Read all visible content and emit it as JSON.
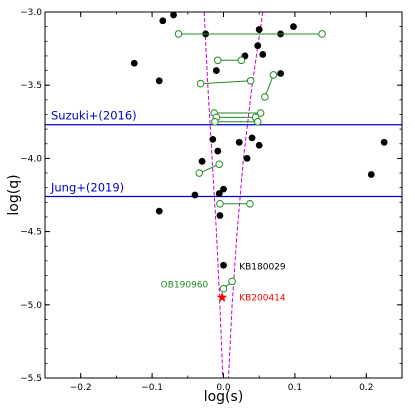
{
  "chart_data": {
    "type": "scatter",
    "xlabel": "log(s)",
    "ylabel": "log(q)",
    "xlim": [
      -0.25,
      0.25
    ],
    "ylim": [
      -5.5,
      -3.0
    ],
    "xticks": [
      -0.2,
      -0.1,
      0.0,
      0.1,
      0.2
    ],
    "xtick_labels": [
      "−0.2",
      "−0.1",
      "0.0",
      "0.1",
      "0.2"
    ],
    "yticks": [
      -5.5,
      -5.0,
      -4.5,
      -4.0,
      -3.5,
      -3.0
    ],
    "ytick_labels": [
      "−5.5",
      "−5.0",
      "−4.5",
      "−4.0",
      "−3.5",
      "−3.0"
    ],
    "series": [
      {
        "marker": "filled-circle",
        "color": "#000000",
        "points": [
          {
            "x": -0.07,
            "y": -3.02
          },
          {
            "x": -0.085,
            "y": -3.06
          },
          {
            "x": -0.125,
            "y": -3.35
          },
          {
            "x": -0.09,
            "y": -3.47
          },
          {
            "x": -0.025,
            "y": -3.15
          },
          {
            "x": -0.01,
            "y": -3.4
          },
          {
            "x": 0.03,
            "y": -3.3
          },
          {
            "x": 0.05,
            "y": -3.12
          },
          {
            "x": 0.048,
            "y": -3.23
          },
          {
            "x": 0.055,
            "y": -3.29
          },
          {
            "x": 0.08,
            "y": -3.15
          },
          {
            "x": 0.098,
            "y": -3.1
          },
          {
            "x": 0.08,
            "y": -3.42
          },
          {
            "x": -0.015,
            "y": -3.87
          },
          {
            "x": -0.008,
            "y": -3.95
          },
          {
            "x": 0.022,
            "y": -3.89
          },
          {
            "x": 0.04,
            "y": -3.86
          },
          {
            "x": 0.033,
            "y": -4.0
          },
          {
            "x": 0.05,
            "y": -3.91
          },
          {
            "x": -0.03,
            "y": -4.02
          },
          {
            "x": 0.0,
            "y": -4.21
          },
          {
            "x": -0.006,
            "y": -4.24
          },
          {
            "x": -0.04,
            "y": -4.25
          },
          {
            "x": -0.09,
            "y": -4.36
          },
          {
            "x": -0.005,
            "y": -4.39
          },
          {
            "x": 0.0,
            "y": -4.73
          },
          {
            "x": 0.207,
            "y": -4.11
          },
          {
            "x": 0.225,
            "y": -3.89
          }
        ]
      },
      {
        "marker": "open-circle-pair",
        "color": "#228b22",
        "pairs": [
          [
            {
              "x": -0.063,
              "y": -3.15
            },
            {
              "x": 0.138,
              "y": -3.15
            }
          ],
          [
            {
              "x": -0.008,
              "y": -3.33
            },
            {
              "x": 0.025,
              "y": -3.33
            }
          ],
          [
            {
              "x": -0.032,
              "y": -3.49
            },
            {
              "x": 0.038,
              "y": -3.47
            }
          ],
          [
            {
              "x": 0.058,
              "y": -3.58
            },
            {
              "x": 0.07,
              "y": -3.43
            }
          ],
          [
            {
              "x": -0.013,
              "y": -3.69
            },
            {
              "x": 0.052,
              "y": -3.69
            }
          ],
          [
            {
              "x": -0.01,
              "y": -3.72
            },
            {
              "x": 0.045,
              "y": -3.72
            }
          ],
          [
            {
              "x": -0.012,
              "y": -3.75
            },
            {
              "x": 0.048,
              "y": -3.75
            }
          ],
          [
            {
              "x": -0.034,
              "y": -4.1
            },
            {
              "x": -0.006,
              "y": -4.04
            }
          ],
          [
            {
              "x": -0.005,
              "y": -4.31
            },
            {
              "x": 0.037,
              "y": -4.31
            }
          ],
          [
            {
              "x": 0.0,
              "y": -4.89
            },
            {
              "x": 0.012,
              "y": -4.84
            }
          ]
        ]
      },
      {
        "marker": "star",
        "color": "#ff0000",
        "points": [
          {
            "x": -0.002,
            "y": -4.95
          }
        ]
      }
    ],
    "reference_lines": [
      {
        "y": -3.77,
        "label": "Suzuki+(2016)",
        "color": "#0000cc"
      },
      {
        "y": -4.26,
        "label": "Jung+(2019)",
        "color": "#0000cc"
      }
    ],
    "annotations": [
      {
        "text": "KB180029",
        "x": 0.022,
        "y": -4.74,
        "color": "#000000"
      },
      {
        "text": "OB190960",
        "x": -0.088,
        "y": -4.86,
        "color": "#228b22"
      },
      {
        "text": "KB200414",
        "x": 0.022,
        "y": -4.95,
        "color": "#ff0000"
      }
    ],
    "envelope": {
      "color": "#cc00cc",
      "style": "dashed",
      "left": [
        {
          "x": -0.027,
          "y": -3.0
        },
        {
          "x": -0.022,
          "y": -3.5
        },
        {
          "x": -0.016,
          "y": -4.0
        },
        {
          "x": -0.01,
          "y": -4.5
        },
        {
          "x": -0.005,
          "y": -5.0
        },
        {
          "x": -0.001,
          "y": -5.5
        }
      ],
      "right": [
        {
          "x": 0.055,
          "y": -3.0
        },
        {
          "x": 0.04,
          "y": -3.5
        },
        {
          "x": 0.028,
          "y": -4.0
        },
        {
          "x": 0.019,
          "y": -4.5
        },
        {
          "x": 0.012,
          "y": -5.0
        },
        {
          "x": 0.007,
          "y": -5.5
        }
      ]
    },
    "grid": false
  }
}
